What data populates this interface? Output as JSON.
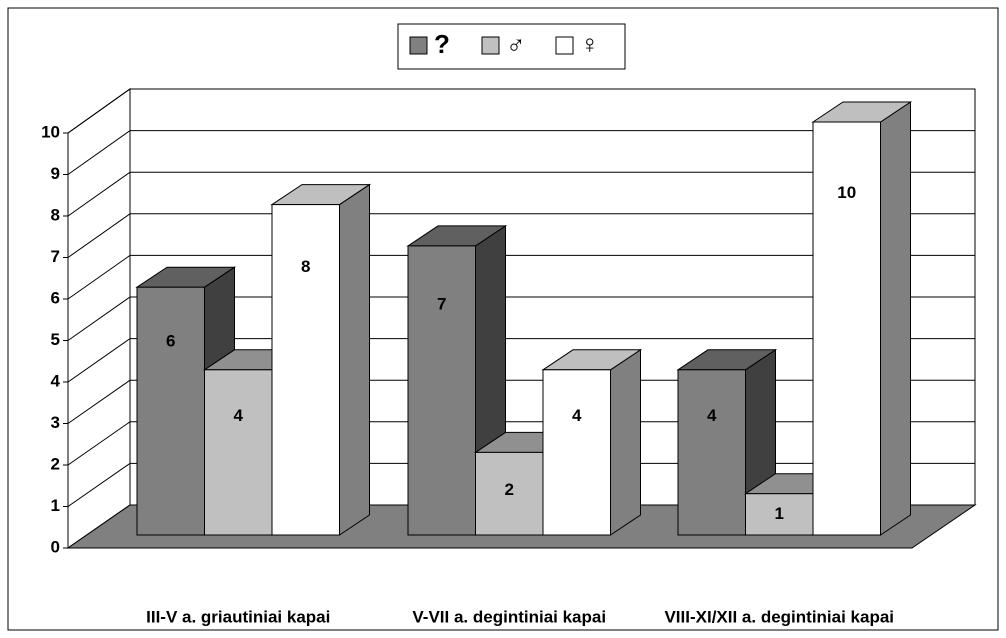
{
  "chart_data": {
    "type": "bar3d",
    "categories": [
      "III-V a. griautiniai kapai",
      "V-VII a. degintiniai kapai",
      "VIII-XI/XII a. degintiniai kapai"
    ],
    "series": [
      {
        "name": "?",
        "color": "#808080",
        "values": [
          6,
          7,
          4
        ]
      },
      {
        "name": "♂",
        "color": "#c0c0c0",
        "values": [
          4,
          2,
          1
        ]
      },
      {
        "name": "♀",
        "color": "#ffffff",
        "values": [
          8,
          4,
          10
        ]
      }
    ],
    "ylim": [
      0,
      10
    ],
    "yticks": [
      0,
      1,
      2,
      3,
      4,
      5,
      6,
      7,
      8,
      9,
      10
    ],
    "grid": true,
    "legend": "top"
  }
}
